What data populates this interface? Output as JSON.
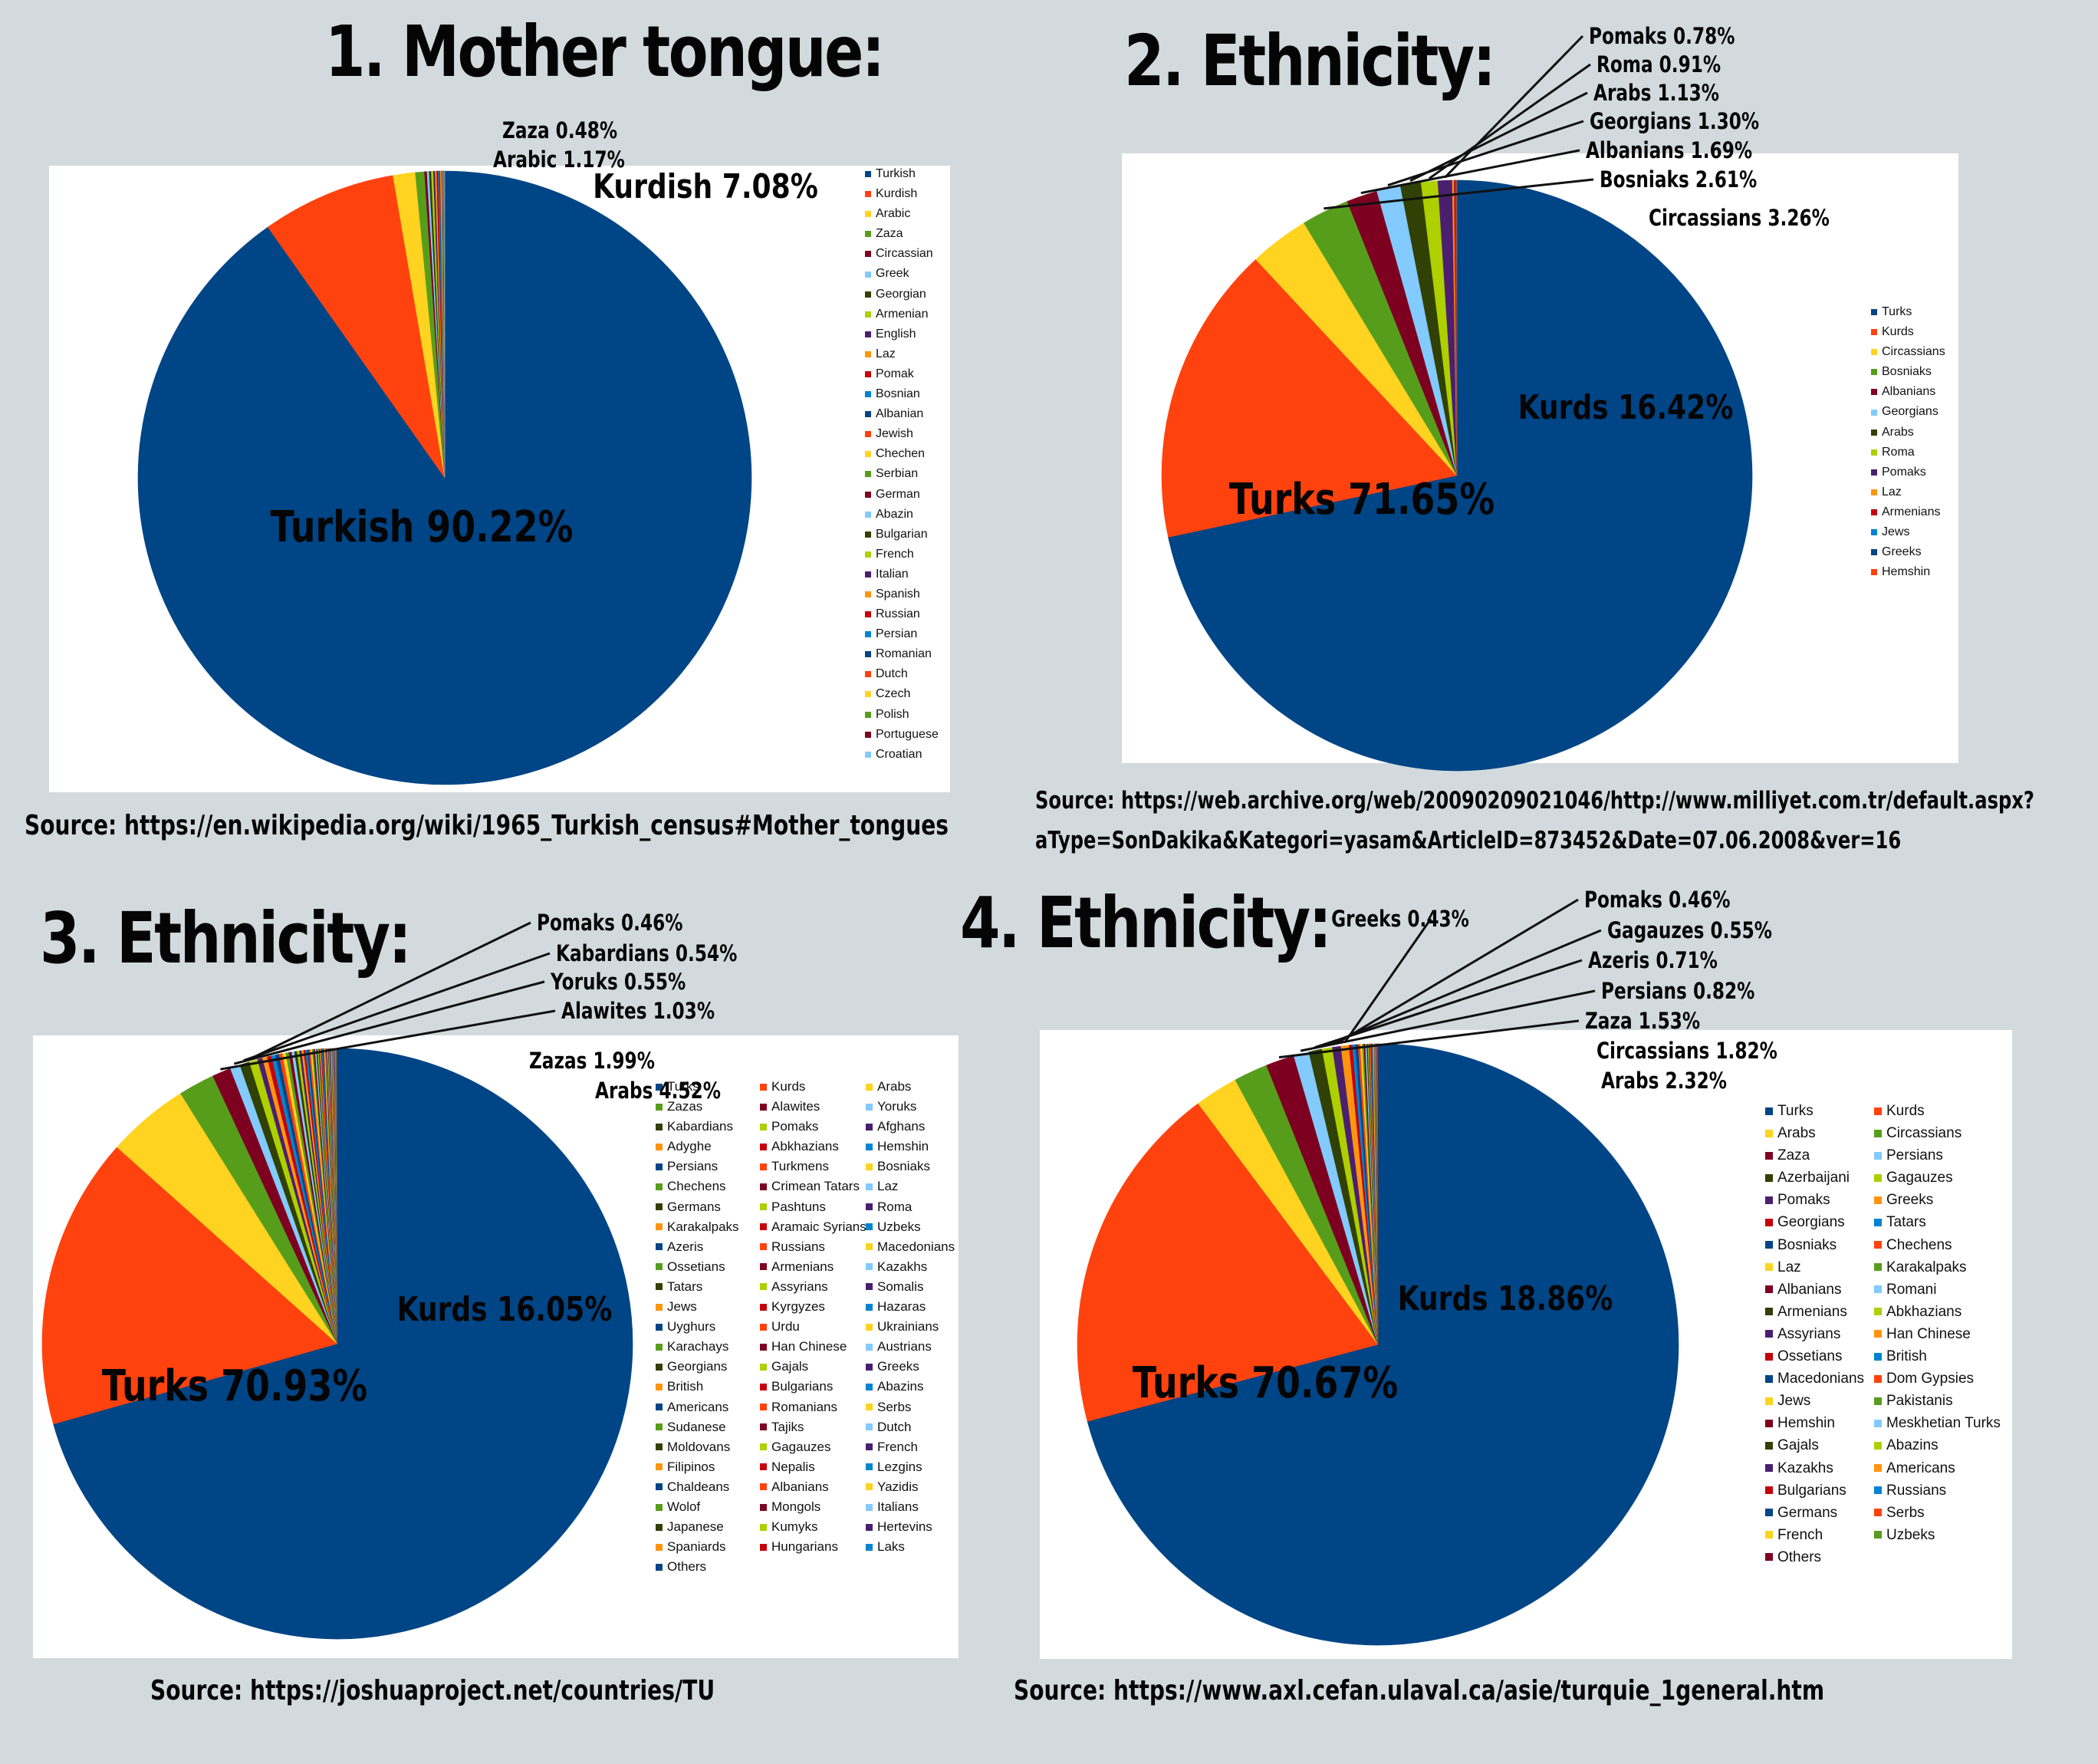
{
  "titles": {
    "mother_tongue": "1. Mother tongue:",
    "ethnicity_2": "2. Ethnicity:",
    "ethnicity_3": "3. Ethnicity:",
    "ethnicity_4": "4. Ethnicity:"
  },
  "sources": {
    "s1": "Source: https://en.wikipedia.org/wiki/1965_Turkish_census#Mother_tongues",
    "s2_line1": "Source: https://web.archive.org/web/20090209021046/http://www.milliyet.com.tr/default.aspx?",
    "s2_line2": "aType=SonDakika&Kategori=yasam&ArticleID=873452&Date=07.06.2008&ver=16",
    "s3": "Source: https://joshuaproject.net/countries/TU",
    "s4": "Source: https://www.axl.cefan.ulaval.ca/asie/turquie_1general.htm"
  },
  "colors": {
    "background": "#d2dadd",
    "navy": "#004586",
    "orange": "#ff420e",
    "yellow": "#ffd320",
    "green": "#579d1c",
    "maroon": "#7e0021",
    "lightblue": "#83caff",
    "darkolive": "#314004",
    "lime": "#aecf00",
    "purple": "#4b1f6f",
    "amber": "#ff950e",
    "red": "#c5000b",
    "blue": "#0084d1"
  },
  "chart_data": [
    {
      "id": "mother-tongue",
      "type": "pie",
      "title": "1. Mother tongue:",
      "series": [
        {
          "name": "Turkish",
          "value": 90.22,
          "color": "#004586",
          "label": "Turkish 90.22%"
        },
        {
          "name": "Kurdish",
          "value": 7.08,
          "color": "#ff420e",
          "label": "Kurdish 7.08%"
        },
        {
          "name": "Arabic",
          "value": 1.17,
          "color": "#ffd320",
          "label": "Arabic 1.17%"
        },
        {
          "name": "Zaza",
          "value": 0.48,
          "color": "#579d1c",
          "label": "Zaza 0.48%"
        },
        {
          "name": "Circassian",
          "value": 0.13,
          "color": "#7e0021"
        },
        {
          "name": "Greek",
          "value": 0.11,
          "color": "#83caff"
        },
        {
          "name": "Georgian",
          "value": 0.11,
          "color": "#314004"
        },
        {
          "name": "Armenian",
          "value": 0.11,
          "color": "#aecf00"
        },
        {
          "name": "English",
          "value": 0.09,
          "color": "#4b1f6f"
        },
        {
          "name": "Laz",
          "value": 0.08,
          "color": "#ff950e"
        },
        {
          "name": "Pomak",
          "value": 0.08,
          "color": "#c5000b"
        },
        {
          "name": "Bosnian",
          "value": 0.06,
          "color": "#0084d1"
        },
        {
          "name": "Albanian",
          "value": 0.04,
          "color": "#004586"
        },
        {
          "name": "Jewish",
          "value": 0.03,
          "color": "#ff420e"
        },
        {
          "name": "Chechen",
          "value": 0.03,
          "color": "#ffd320"
        },
        {
          "name": "Serbian",
          "value": 0.02,
          "color": "#579d1c"
        },
        {
          "name": "German",
          "value": 0.02,
          "color": "#7e0021"
        },
        {
          "name": "Abazin",
          "value": 0.02,
          "color": "#83caff"
        },
        {
          "name": "Bulgarian",
          "value": 0.01,
          "color": "#314004"
        },
        {
          "name": "French",
          "value": 0.01,
          "color": "#aecf00"
        },
        {
          "name": "Italian",
          "value": 0.01,
          "color": "#4b1f6f"
        },
        {
          "name": "Spanish",
          "value": 0.01,
          "color": "#ff950e"
        },
        {
          "name": "Russian",
          "value": 0.01,
          "color": "#c5000b"
        },
        {
          "name": "Persian",
          "value": 0.01,
          "color": "#0084d1"
        },
        {
          "name": "Romanian",
          "value": 0.01,
          "color": "#004586"
        },
        {
          "name": "Dutch",
          "value": 0.01,
          "color": "#ff420e"
        },
        {
          "name": "Czech",
          "value": 0.01,
          "color": "#ffd320"
        },
        {
          "name": "Polish",
          "value": 0.01,
          "color": "#579d1c"
        },
        {
          "name": "Portuguese",
          "value": 0.01,
          "color": "#7e0021"
        },
        {
          "name": "Croatian",
          "value": 0.01,
          "color": "#83caff"
        }
      ]
    },
    {
      "id": "ethnicity-2",
      "type": "pie",
      "title": "2. Ethnicity:",
      "series": [
        {
          "name": "Turks",
          "value": 71.65,
          "color": "#004586",
          "label": "Turks 71.65%"
        },
        {
          "name": "Kurds",
          "value": 16.42,
          "color": "#ff420e",
          "label": "Kurds 16.42%"
        },
        {
          "name": "Circassians",
          "value": 3.26,
          "color": "#ffd320",
          "label": "Circassians 3.26%"
        },
        {
          "name": "Bosniaks",
          "value": 2.61,
          "color": "#579d1c",
          "label": "Bosniaks 2.61%"
        },
        {
          "name": "Albanians",
          "value": 1.69,
          "color": "#7e0021",
          "label": "Albanians 1.69%"
        },
        {
          "name": "Georgians",
          "value": 1.3,
          "color": "#83caff",
          "label": "Georgians 1.30%"
        },
        {
          "name": "Arabs",
          "value": 1.13,
          "color": "#314004",
          "label": "Arabs 1.13%"
        },
        {
          "name": "Roma",
          "value": 0.91,
          "color": "#aecf00",
          "label": "Roma 0.91%"
        },
        {
          "name": "Pomaks",
          "value": 0.78,
          "color": "#4b1f6f",
          "label": "Pomaks 0.78%"
        },
        {
          "name": "Laz",
          "value": 0.1,
          "color": "#ff950e"
        },
        {
          "name": "Armenians",
          "value": 0.06,
          "color": "#c5000b"
        },
        {
          "name": "Jews",
          "value": 0.04,
          "color": "#0084d1"
        },
        {
          "name": "Greeks",
          "value": 0.03,
          "color": "#004586"
        },
        {
          "name": "Hemshin",
          "value": 0.02,
          "color": "#ff420e"
        }
      ]
    },
    {
      "id": "ethnicity-3",
      "type": "pie",
      "title": "3. Ethnicity:",
      "series": [
        {
          "name": "Turks",
          "value": 70.93,
          "color": "#004586",
          "label": "Turks 70.93%"
        },
        {
          "name": "Kurds",
          "value": 16.05,
          "color": "#ff420e",
          "label": "Kurds 16.05%"
        },
        {
          "name": "Arabs",
          "value": 4.52,
          "color": "#ffd320",
          "label": "Arabs 4.52%"
        },
        {
          "name": "Zazas",
          "value": 1.99,
          "color": "#579d1c",
          "label": "Zazas 1.99%"
        },
        {
          "name": "Alawites",
          "value": 1.03,
          "color": "#7e0021",
          "label": "Alawites 1.03%"
        },
        {
          "name": "Yoruks",
          "value": 0.55,
          "color": "#83caff",
          "label": "Yoruks 0.55%"
        },
        {
          "name": "Kabardians",
          "value": 0.54,
          "color": "#314004",
          "label": "Kabardians 0.54%"
        },
        {
          "name": "Pomaks",
          "value": 0.46,
          "color": "#aecf00",
          "label": "Pomaks 0.46%"
        },
        {
          "name": "Afghans",
          "value": 0.28,
          "color": "#4b1f6f"
        },
        {
          "name": "Adyghe",
          "value": 0.26,
          "color": "#ff950e"
        },
        {
          "name": "Abkhazians",
          "value": 0.24,
          "color": "#c5000b"
        },
        {
          "name": "Hemshin",
          "value": 0.22,
          "color": "#0084d1"
        },
        {
          "name": "Persians",
          "value": 0.2,
          "color": "#004586"
        },
        {
          "name": "Turkmens",
          "value": 0.19,
          "color": "#ff420e"
        },
        {
          "name": "Bosniaks",
          "value": 0.18,
          "color": "#ffd320"
        },
        {
          "name": "Chechens",
          "value": 0.17,
          "color": "#579d1c"
        },
        {
          "name": "Crimean Tatars",
          "value": 0.16,
          "color": "#7e0021"
        },
        {
          "name": "Laz",
          "value": 0.15,
          "color": "#83caff"
        },
        {
          "name": "Germans",
          "value": 0.14,
          "color": "#314004"
        },
        {
          "name": "Pashtuns",
          "value": 0.13,
          "color": "#aecf00"
        },
        {
          "name": "Roma",
          "value": 0.12,
          "color": "#4b1f6f"
        },
        {
          "name": "Karakalpaks",
          "value": 0.11,
          "color": "#ff950e"
        },
        {
          "name": "Aramaic Syrians",
          "value": 0.1,
          "color": "#c5000b"
        },
        {
          "name": "Uzbeks",
          "value": 0.1,
          "color": "#0084d1"
        },
        {
          "name": "Azeris",
          "value": 0.09,
          "color": "#004586"
        },
        {
          "name": "Russians",
          "value": 0.09,
          "color": "#ff420e"
        },
        {
          "name": "Macedonians",
          "value": 0.08,
          "color": "#ffd320"
        },
        {
          "name": "Ossetians",
          "value": 0.08,
          "color": "#579d1c"
        },
        {
          "name": "Armenians",
          "value": 0.08,
          "color": "#7e0021"
        },
        {
          "name": "Kazakhs",
          "value": 0.07,
          "color": "#83caff"
        },
        {
          "name": "Tatars",
          "value": 0.07,
          "color": "#314004"
        },
        {
          "name": "Assyrians",
          "value": 0.06,
          "color": "#aecf00"
        },
        {
          "name": "Somalis",
          "value": 0.06,
          "color": "#4b1f6f"
        },
        {
          "name": "Jews",
          "value": 0.06,
          "color": "#ff950e"
        },
        {
          "name": "Kyrgyzes",
          "value": 0.05,
          "color": "#c5000b"
        },
        {
          "name": "Hazaras",
          "value": 0.05,
          "color": "#0084d1"
        },
        {
          "name": "Uyghurs",
          "value": 0.05,
          "color": "#004586"
        },
        {
          "name": "Urdu",
          "value": 0.04,
          "color": "#ff420e"
        },
        {
          "name": "Ukrainians",
          "value": 0.04,
          "color": "#ffd320"
        },
        {
          "name": "Karachays",
          "value": 0.04,
          "color": "#579d1c"
        },
        {
          "name": "Han Chinese",
          "value": 0.04,
          "color": "#7e0021"
        },
        {
          "name": "Austrians",
          "value": 0.03,
          "color": "#83caff"
        },
        {
          "name": "Georgians",
          "value": 0.03,
          "color": "#314004"
        },
        {
          "name": "Gajals",
          "value": 0.03,
          "color": "#aecf00"
        },
        {
          "name": "Greeks",
          "value": 0.03,
          "color": "#4b1f6f"
        },
        {
          "name": "British",
          "value": 0.03,
          "color": "#ff950e"
        },
        {
          "name": "Bulgarians",
          "value": 0.03,
          "color": "#c5000b"
        },
        {
          "name": "Abazins",
          "value": 0.03,
          "color": "#0084d1"
        },
        {
          "name": "Americans",
          "value": 0.02,
          "color": "#004586"
        },
        {
          "name": "Romanians",
          "value": 0.02,
          "color": "#ff420e"
        },
        {
          "name": "Serbs",
          "value": 0.02,
          "color": "#ffd320"
        },
        {
          "name": "Sudanese",
          "value": 0.02,
          "color": "#579d1c"
        },
        {
          "name": "Tajiks",
          "value": 0.02,
          "color": "#7e0021"
        },
        {
          "name": "Dutch",
          "value": 0.02,
          "color": "#83caff"
        },
        {
          "name": "Moldovans",
          "value": 0.02,
          "color": "#314004"
        },
        {
          "name": "Gagauzes",
          "value": 0.02,
          "color": "#aecf00"
        },
        {
          "name": "French",
          "value": 0.02,
          "color": "#4b1f6f"
        },
        {
          "name": "Filipinos",
          "value": 0.02,
          "color": "#ff950e"
        },
        {
          "name": "Nepalis",
          "value": 0.02,
          "color": "#c5000b"
        },
        {
          "name": "Lezgins",
          "value": 0.02,
          "color": "#0084d1"
        },
        {
          "name": "Chaldeans",
          "value": 0.01,
          "color": "#004586"
        },
        {
          "name": "Albanians",
          "value": 0.01,
          "color": "#ff420e"
        },
        {
          "name": "Yazidis",
          "value": 0.01,
          "color": "#ffd320"
        },
        {
          "name": "Wolof",
          "value": 0.01,
          "color": "#579d1c"
        },
        {
          "name": "Mongols",
          "value": 0.01,
          "color": "#7e0021"
        },
        {
          "name": "Italians",
          "value": 0.01,
          "color": "#83caff"
        },
        {
          "name": "Japanese",
          "value": 0.01,
          "color": "#314004"
        },
        {
          "name": "Kumyks",
          "value": 0.01,
          "color": "#aecf00"
        },
        {
          "name": "Hertevins",
          "value": 0.01,
          "color": "#4b1f6f"
        },
        {
          "name": "Spaniards",
          "value": 0.01,
          "color": "#ff950e"
        },
        {
          "name": "Hungarians",
          "value": 0.01,
          "color": "#c5000b"
        },
        {
          "name": "Laks",
          "value": 0.01,
          "color": "#0084d1"
        },
        {
          "name": "Others",
          "value": 0.01,
          "color": "#004586"
        }
      ]
    },
    {
      "id": "ethnicity-4",
      "type": "pie",
      "title": "4. Ethnicity:",
      "series": [
        {
          "name": "Turks",
          "value": 70.67,
          "color": "#004586",
          "label": "Turks 70.67%"
        },
        {
          "name": "Kurds",
          "value": 18.86,
          "color": "#ff420e",
          "label": "Kurds 18.86%"
        },
        {
          "name": "Arabs",
          "value": 2.32,
          "color": "#ffd320",
          "label": "Arabs 2.32%"
        },
        {
          "name": "Circassians",
          "value": 1.82,
          "color": "#579d1c",
          "label": "Circassians 1.82%"
        },
        {
          "name": "Zaza",
          "value": 1.53,
          "color": "#7e0021",
          "label": "Zaza 1.53%"
        },
        {
          "name": "Persians",
          "value": 0.82,
          "color": "#83caff",
          "label": "Persians 0.82%"
        },
        {
          "name": "Azerbaijani",
          "value": 0.71,
          "color": "#314004",
          "label": "Azeris 0.71%"
        },
        {
          "name": "Gagauzes",
          "value": 0.55,
          "color": "#aecf00",
          "label": "Gagauzes 0.55%"
        },
        {
          "name": "Pomaks",
          "value": 0.46,
          "color": "#4b1f6f",
          "label": "Pomaks 0.46%"
        },
        {
          "name": "Greeks",
          "value": 0.43,
          "color": "#ff950e",
          "label": "Greeks 0.43%"
        },
        {
          "name": "Georgians",
          "value": 0.18,
          "color": "#c5000b"
        },
        {
          "name": "Tatars",
          "value": 0.16,
          "color": "#0084d1"
        },
        {
          "name": "Bosniaks",
          "value": 0.14,
          "color": "#004586"
        },
        {
          "name": "Chechens",
          "value": 0.12,
          "color": "#ff420e"
        },
        {
          "name": "Laz",
          "value": 0.1,
          "color": "#ffd320"
        },
        {
          "name": "Karakalpaks",
          "value": 0.09,
          "color": "#579d1c"
        },
        {
          "name": "Albanians",
          "value": 0.08,
          "color": "#7e0021"
        },
        {
          "name": "Romani",
          "value": 0.07,
          "color": "#83caff"
        },
        {
          "name": "Armenians",
          "value": 0.06,
          "color": "#314004"
        },
        {
          "name": "Abkhazians",
          "value": 0.05,
          "color": "#aecf00"
        },
        {
          "name": "Assyrians",
          "value": 0.05,
          "color": "#4b1f6f"
        },
        {
          "name": "Han Chinese",
          "value": 0.04,
          "color": "#ff950e"
        },
        {
          "name": "Ossetians",
          "value": 0.04,
          "color": "#c5000b"
        },
        {
          "name": "British",
          "value": 0.04,
          "color": "#0084d1"
        },
        {
          "name": "Macedonians",
          "value": 0.03,
          "color": "#004586"
        },
        {
          "name": "Dom Gypsies",
          "value": 0.03,
          "color": "#ff420e"
        },
        {
          "name": "Jews",
          "value": 0.03,
          "color": "#ffd320"
        },
        {
          "name": "Pakistanis",
          "value": 0.03,
          "color": "#579d1c"
        },
        {
          "name": "Hemshin",
          "value": 0.02,
          "color": "#7e0021"
        },
        {
          "name": "Meskhetian Turks",
          "value": 0.02,
          "color": "#83caff"
        },
        {
          "name": "Gajals",
          "value": 0.02,
          "color": "#314004"
        },
        {
          "name": "Abazins",
          "value": 0.02,
          "color": "#aecf00"
        },
        {
          "name": "Kazakhs",
          "value": 0.02,
          "color": "#4b1f6f"
        },
        {
          "name": "Americans",
          "value": 0.02,
          "color": "#ff950e"
        },
        {
          "name": "Bulgarians",
          "value": 0.01,
          "color": "#c5000b"
        },
        {
          "name": "Russians",
          "value": 0.01,
          "color": "#0084d1"
        },
        {
          "name": "Germans",
          "value": 0.01,
          "color": "#004586"
        },
        {
          "name": "Serbs",
          "value": 0.01,
          "color": "#ff420e"
        },
        {
          "name": "French",
          "value": 0.01,
          "color": "#ffd320"
        },
        {
          "name": "Uzbeks",
          "value": 0.01,
          "color": "#579d1c"
        },
        {
          "name": "Others",
          "value": 0.01,
          "color": "#7e0021"
        }
      ]
    }
  ]
}
